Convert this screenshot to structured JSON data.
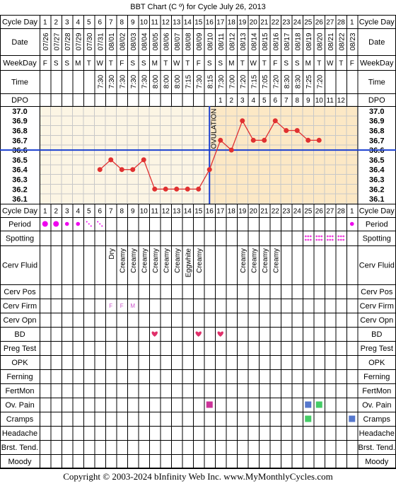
{
  "title": "BBT Chart (C º) for Cycle July 26, 2013",
  "footer": "Copyright © 2003-2024 bInfinity Web Inc.     www.MyMonthlyCycles.com",
  "colors": {
    "pre_ovulation_bg": "#fcf5e4",
    "post_ovulation_bg": "#fce8c5",
    "line": "#e03030",
    "cover_line": "#1a3fd0",
    "period": "#ee00ee",
    "spotting": "#ee44dd",
    "heart": "#e0306a",
    "ov_pain": "#cc3399",
    "ov_pain_2": "#5577cc",
    "cramps_green": "#44cc66",
    "cramps_blue": "#5577cc",
    "cervical_firm": "#cc55cc"
  },
  "row_labels": {
    "cycle_day": "Cycle Day",
    "date": "Date",
    "weekday": "WeekDay",
    "time": "Time",
    "dpo": "DPO",
    "period": "Period",
    "spotting": "Spotting",
    "cerv_fluid": "Cerv Fluid",
    "cerv_pos": "Cerv Pos",
    "cerv_firm": "Cerv Firm",
    "cerv_opn": "Cerv Opn",
    "bd": "BD",
    "preg_test": "Preg Test",
    "opk": "OPK",
    "ferning": "Ferning",
    "fertmon": "FertMon",
    "ov_pain": "Ov. Pain",
    "cramps": "Cramps",
    "headache": "Headache",
    "brst_tend": "Brst. Tend.",
    "moody": "Moody"
  },
  "chart_data": {
    "type": "line",
    "title": "BBT Chart (C º) for Cycle July 26, 2013",
    "x_label": "Cycle Day",
    "y_label": "",
    "y_ticks": [
      "37.0",
      "36.9",
      "36.8",
      "36.7",
      "36.6",
      "36.5",
      "36.4",
      "36.3",
      "36.2",
      "36.1"
    ],
    "y_range": [
      36.1,
      37.0
    ],
    "cover_line": 36.6,
    "ovulation_day": 16,
    "ovulation_label": "OVULATION",
    "dpo_labels": [
      "1",
      "2",
      "3",
      "4",
      "5",
      "6",
      "7",
      "8",
      "9",
      "10",
      "11",
      "12"
    ],
    "dpo_start_day": 17,
    "days": [
      1,
      2,
      3,
      4,
      5,
      6,
      7,
      8,
      9,
      10,
      11,
      12,
      13,
      14,
      15,
      16,
      17,
      18,
      19,
      20,
      21,
      22,
      23,
      24,
      25,
      26,
      27,
      28,
      1
    ],
    "dates": [
      "07/26",
      "07/27",
      "07/28",
      "07/29",
      "07/30",
      "07/31",
      "08/01",
      "08/02",
      "08/03",
      "08/04",
      "08/05",
      "08/06",
      "08/07",
      "08/08",
      "08/09",
      "08/10",
      "08/11",
      "08/12",
      "08/13",
      "08/14",
      "08/15",
      "08/16",
      "08/17",
      "08/18",
      "08/19",
      "08/20",
      "08/21",
      "08/22",
      "08/23"
    ],
    "weekdays": [
      "F",
      "S",
      "S",
      "M",
      "T",
      "W",
      "T",
      "F",
      "S",
      "S",
      "M",
      "T",
      "W",
      "T",
      "F",
      "S",
      "S",
      "M",
      "T",
      "W",
      "T",
      "F",
      "S",
      "S",
      "M",
      "T",
      "W",
      "T",
      "F"
    ],
    "times": [
      "",
      "",
      "",
      "",
      "",
      "7:30",
      "7:30",
      "7:30",
      "7:30",
      "7:30",
      "8:00",
      "8:00",
      "8:00",
      "7:15",
      "7:30",
      "8:15",
      "7:30",
      "7:00",
      "7:20",
      "7:15",
      "7:05",
      "7:20",
      "8:30",
      "8:30",
      "7:25",
      "7:20",
      "",
      "",
      ""
    ],
    "temps": [
      null,
      null,
      null,
      null,
      null,
      36.4,
      36.5,
      36.4,
      36.4,
      36.5,
      36.2,
      36.2,
      36.2,
      36.2,
      36.2,
      36.4,
      36.7,
      36.6,
      36.9,
      36.7,
      36.7,
      36.9,
      36.8,
      36.8,
      36.7,
      36.7,
      null,
      null,
      null
    ],
    "period": [
      "heavy",
      "heavy",
      "medium",
      "medium",
      "spotting",
      "spotting",
      "",
      "",
      "",
      "",
      "",
      "",
      "",
      "",
      "",
      "",
      "",
      "",
      "",
      "",
      "",
      "",
      "",
      "",
      "",
      "",
      "",
      "",
      "medium"
    ],
    "spotting": [
      false,
      false,
      false,
      false,
      false,
      false,
      false,
      false,
      false,
      false,
      false,
      false,
      false,
      false,
      false,
      false,
      false,
      false,
      false,
      false,
      false,
      false,
      false,
      false,
      true,
      true,
      true,
      true,
      false
    ],
    "cerv_fluid": [
      "",
      "",
      "",
      "",
      "",
      "",
      "Dry",
      "Creamy",
      "Creamy",
      "Creamy",
      "Creamy",
      "Creamy",
      "Creamy",
      "Eggwhite",
      "Creamy",
      "",
      "",
      "",
      "Creamy",
      "Creamy",
      "Creamy",
      "Creamy",
      "",
      "",
      "",
      "",
      "",
      "",
      ""
    ],
    "cerv_firm": [
      "",
      "",
      "",
      "",
      "",
      "",
      "F",
      "F",
      "M",
      "",
      "",
      "",
      "",
      "",
      "",
      "",
      "",
      "",
      "",
      "",
      "",
      "",
      "",
      "",
      "",
      "",
      "",
      "",
      ""
    ],
    "bd": [
      false,
      false,
      false,
      false,
      false,
      false,
      false,
      false,
      false,
      false,
      true,
      false,
      false,
      false,
      true,
      false,
      true,
      false,
      false,
      false,
      false,
      false,
      false,
      false,
      false,
      false,
      false,
      false,
      false
    ],
    "ov_pain": [
      "",
      "",
      "",
      "",
      "",
      "",
      "",
      "",
      "",
      "",
      "",
      "",
      "",
      "",
      "",
      "pink",
      "",
      "",
      "",
      "",
      "",
      "",
      "",
      "",
      "blue",
      "green",
      "",
      "",
      ""
    ],
    "cramps": [
      "",
      "",
      "",
      "",
      "",
      "",
      "",
      "",
      "",
      "",
      "",
      "",
      "",
      "",
      "",
      "",
      "",
      "",
      "",
      "",
      "",
      "",
      "",
      "",
      "green",
      "",
      "",
      "",
      "blue"
    ]
  }
}
